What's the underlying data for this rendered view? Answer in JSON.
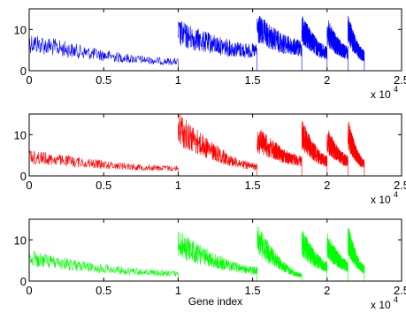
{
  "chart_data": [
    {
      "type": "line",
      "title": "",
      "xlabel": "",
      "ylabel": "",
      "xlim": [
        0,
        25000
      ],
      "ylim": [
        0,
        15
      ],
      "x_ticks": [
        "0",
        "0.5",
        "1",
        "1.5",
        "2",
        "2.5"
      ],
      "y_ticks": [
        "0",
        "10"
      ],
      "x_exponent_base": "x 10",
      "x_exponent_power": "4",
      "grid": false,
      "series": [
        {
          "color": "#0000ff",
          "style": "thin-line",
          "segments": [
            [
              0,
              10000,
              9.5,
              3.0
            ],
            [
              10000,
              15300,
              12.5,
              6.5
            ],
            [
              15300,
              18300,
              14.0,
              7.5
            ],
            [
              18300,
              20000,
              14.0,
              6.0
            ],
            [
              20000,
              21400,
              13.0,
              6.0
            ],
            [
              21400,
              22500,
              14.0,
              5.0
            ]
          ]
        }
      ]
    },
    {
      "type": "line",
      "title": "",
      "xlabel": "",
      "ylabel": "",
      "xlim": [
        0,
        25000
      ],
      "ylim": [
        0,
        15
      ],
      "x_ticks": [
        "0",
        "0.5",
        "1",
        "1.5",
        "2",
        "2.5"
      ],
      "y_ticks": [
        "0",
        "10"
      ],
      "x_exponent_base": "x 10",
      "x_exponent_power": "4",
      "grid": false,
      "series": [
        {
          "color": "#ff0000",
          "style": "thin-line",
          "segments": [
            [
              0,
              10000,
              6.5,
              2.5
            ],
            [
              10000,
              15300,
              16.0,
              3.0
            ],
            [
              15300,
              18300,
              12.5,
              5.0
            ],
            [
              18300,
              20000,
              14.0,
              5.0
            ],
            [
              20000,
              21400,
              12.0,
              5.0
            ],
            [
              21400,
              22500,
              14.0,
              4.0
            ]
          ]
        }
      ]
    },
    {
      "type": "line",
      "title": "",
      "xlabel": "Gene index",
      "ylabel": "",
      "xlim": [
        0,
        25000
      ],
      "ylim": [
        0,
        15
      ],
      "x_ticks": [
        "0",
        "0.5",
        "1",
        "1.5",
        "2",
        "2.5"
      ],
      "y_ticks": [
        "0",
        "10"
      ],
      "x_exponent_base": "x 10",
      "x_exponent_power": "4",
      "grid": false,
      "series": [
        {
          "color": "#00ff00",
          "style": "thin-line",
          "segments": [
            [
              0,
              10000,
              7.5,
              2.5
            ],
            [
              10000,
              15300,
              12.5,
              3.5
            ],
            [
              15300,
              18300,
              14.0,
              2.0
            ],
            [
              18300,
              20000,
              13.0,
              5.0
            ],
            [
              20000,
              21400,
              12.0,
              5.0
            ],
            [
              21400,
              22500,
              14.0,
              4.0
            ]
          ]
        }
      ]
    }
  ]
}
